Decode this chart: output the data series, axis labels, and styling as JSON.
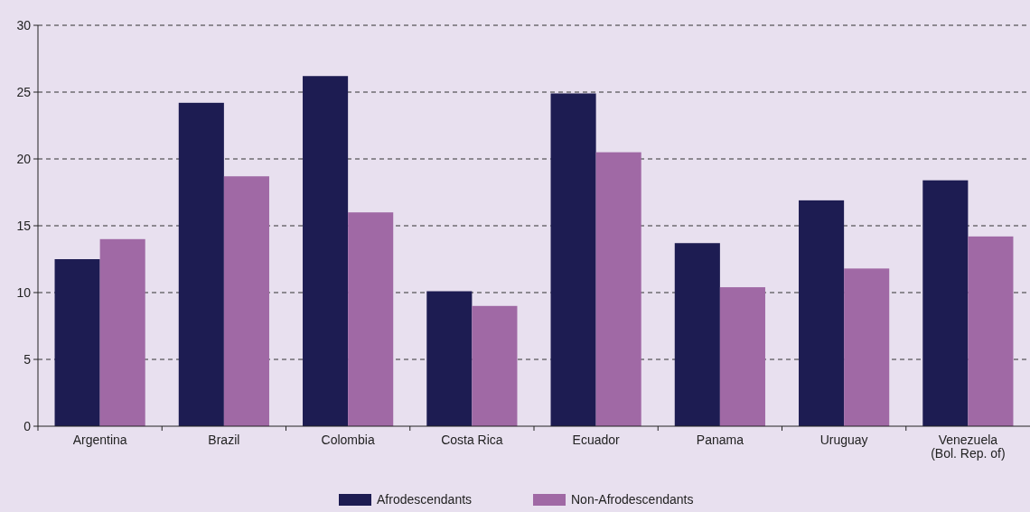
{
  "chart_data": {
    "type": "bar",
    "categories": [
      "Argentina",
      "Brazil",
      "Colombia",
      "Costa Rica",
      "Ecuador",
      "Panama",
      "Uruguay",
      "Venezuela\n(Bol. Rep. of)"
    ],
    "series": [
      {
        "name": "Afrodescendants",
        "color": "#1d1c52",
        "values": [
          12.5,
          24.2,
          26.2,
          10.1,
          24.9,
          13.7,
          16.9,
          18.4
        ]
      },
      {
        "name": "Non-Afrodescendants",
        "color": "#a069a5",
        "values": [
          14.0,
          18.7,
          16.0,
          9.0,
          20.5,
          10.4,
          11.8,
          14.2
        ]
      }
    ],
    "ylim": [
      0,
      30
    ],
    "yticks": [
      0,
      5,
      10,
      15,
      20,
      25,
      30
    ],
    "grid": "y",
    "legend": "bottom"
  }
}
